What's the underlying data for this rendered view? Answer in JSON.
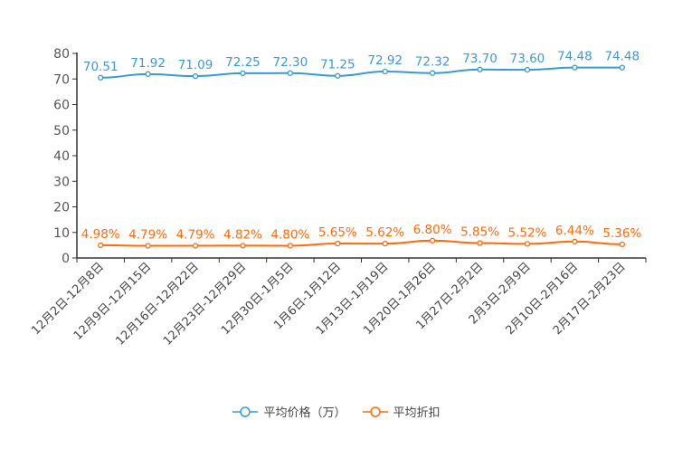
{
  "chart_data": {
    "type": "line",
    "categories": [
      "12月2日-12月8日",
      "12月9日-12月15日",
      "12月16日-12月22日",
      "12月23日-12月29日",
      "12月30日-1月5日",
      "1月6日-1月12日",
      "1月13日-1月19日",
      "1月20日-1月26日",
      "1月27日-2月2日",
      "2月3日-2月9日",
      "2月10日-2月16日",
      "2月17日-2月23日"
    ],
    "series": [
      {
        "name": "平均价格（万）",
        "color": "#3a9ad6",
        "values": [
          70.51,
          71.92,
          71.09,
          72.25,
          72.3,
          71.25,
          72.92,
          72.32,
          73.7,
          73.6,
          74.48,
          74.48
        ],
        "labels": [
          "70.51",
          "71.92",
          "71.09",
          "72.25",
          "72.30",
          "71.25",
          "72.92",
          "72.32",
          "73.70",
          "73.60",
          "74.48",
          "74.48"
        ]
      },
      {
        "name": "平均折扣",
        "color": "#ff6a0a",
        "values": [
          4.98,
          4.79,
          4.79,
          4.82,
          4.8,
          5.65,
          5.62,
          6.8,
          5.85,
          5.52,
          6.44,
          5.36
        ],
        "labels": [
          "4.98%",
          "4.79%",
          "4.79%",
          "4.82%",
          "4.80%",
          "5.65%",
          "5.62%",
          "6.80%",
          "5.85%",
          "5.52%",
          "6.44%",
          "5.36%"
        ]
      }
    ],
    "yticks": [
      "0",
      "10",
      "20",
      "30",
      "40",
      "50",
      "60",
      "70",
      "80"
    ],
    "ylim": [
      0,
      80
    ],
    "legend": "bottom-center"
  }
}
